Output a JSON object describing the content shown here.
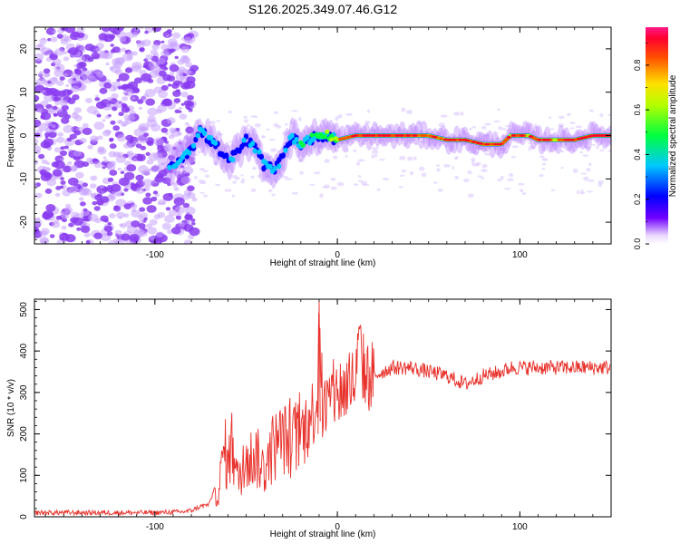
{
  "page_title": "S126.2025.349.07.46.G12",
  "colors": {
    "snr_line": "#e8302a",
    "noise_purple": "#8a3cf0",
    "colorbar_stops": [
      "#ffffff",
      "#7000ff",
      "#0000ff",
      "#00ffff",
      "#00ff00",
      "#ffff00",
      "#ff8000",
      "#ff0000",
      "#ff00aa"
    ]
  },
  "chart_data": [
    {
      "type": "heatmap",
      "name": "spectrogram",
      "title": "",
      "xlabel": "Height of straight line (km)",
      "ylabel": "Frequency (Hz)",
      "xlim": [
        -166,
        150
      ],
      "ylim": [
        -25,
        25
      ],
      "xticks": [
        -100,
        0,
        100
      ],
      "yticks": [
        -20,
        -10,
        0,
        10,
        20
      ],
      "colorbar": {
        "label": "Normalized spectral amplitude",
        "range": [
          0,
          0.97
        ],
        "ticks": [
          0.0,
          0.2,
          0.4,
          0.6,
          0.8
        ]
      },
      "noise_region_x": [
        -166,
        -80
      ],
      "signal_track": {
        "x": [
          -92,
          -85,
          -80,
          -75,
          -70,
          -65,
          -60,
          -55,
          -50,
          -45,
          -40,
          -35,
          -30,
          -25,
          -20,
          -15,
          -10,
          -5,
          0,
          10,
          30,
          50,
          60,
          70,
          80,
          85,
          90,
          95,
          100,
          105,
          110,
          120,
          130,
          140,
          150
        ],
        "freq": [
          -7,
          -5,
          -3,
          1,
          -1,
          -3,
          -6,
          -4,
          -1,
          -3,
          -7,
          -8,
          -5,
          0,
          -2,
          -1,
          0,
          0,
          -1,
          0,
          0,
          0,
          -1,
          -1,
          -2,
          -2,
          -2,
          0,
          0,
          0,
          -1,
          -1,
          -1,
          0,
          0
        ],
        "amplitude": [
          0.3,
          0.35,
          0.3,
          0.3,
          0.35,
          0.3,
          0.3,
          0.3,
          0.3,
          0.3,
          0.35,
          0.3,
          0.3,
          0.35,
          0.4,
          0.45,
          0.5,
          0.6,
          0.7,
          0.9,
          0.9,
          0.8,
          0.85,
          0.9,
          0.9,
          0.95,
          0.9,
          0.85,
          0.9,
          0.8,
          0.85,
          0.8,
          0.9,
          0.95,
          0.9
        ]
      }
    },
    {
      "type": "line",
      "name": "snr",
      "title": "",
      "xlabel": "Height of straight line (km)",
      "ylabel": "SNR (10 * v/v)",
      "xlim": [
        -166,
        150
      ],
      "ylim": [
        0,
        525
      ],
      "xticks": [
        -100,
        0,
        100
      ],
      "yticks": [
        0,
        100,
        200,
        300,
        400,
        500
      ],
      "series": [
        {
          "name": "SNR",
          "x": [
            -166,
            -140,
            -120,
            -100,
            -85,
            -80,
            -75,
            -70,
            -65,
            -62,
            -60,
            -58,
            -55,
            -50,
            -45,
            -40,
            -35,
            -30,
            -25,
            -20,
            -15,
            -11,
            -10,
            -8,
            -5,
            0,
            5,
            10,
            12,
            15,
            20,
            25,
            30,
            35,
            40,
            50,
            60,
            65,
            70,
            80,
            90,
            95,
            100,
            110,
            120,
            130,
            140,
            150
          ],
          "y": [
            10,
            10,
            10,
            10,
            12,
            15,
            25,
            30,
            60,
            170,
            120,
            180,
            90,
            130,
            150,
            110,
            170,
            190,
            180,
            200,
            230,
            290,
            520,
            240,
            280,
            300,
            310,
            330,
            410,
            340,
            340,
            350,
            360,
            360,
            360,
            350,
            340,
            330,
            320,
            340,
            350,
            360,
            360,
            360,
            360,
            360,
            360,
            360
          ]
        }
      ]
    }
  ]
}
